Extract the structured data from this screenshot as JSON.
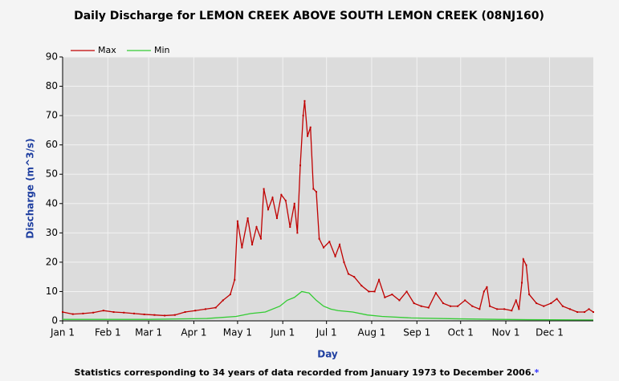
{
  "chart_data": {
    "type": "line",
    "title": "Daily Discharge for LEMON CREEK ABOVE SOUTH LEMON CREEK (08NJ160)",
    "x_label": "Day",
    "y_label": "Discharge (m^3/s)",
    "footnote": "Statistics corresponding to 34 years of data recorded from January 1973 to December 2006.",
    "footnote_mark": "*",
    "xlim": [
      1,
      365
    ],
    "xticks": [
      {
        "value": 1,
        "label": "Jan 1"
      },
      {
        "value": 32,
        "label": "Feb 1"
      },
      {
        "value": 60,
        "label": "Mar 1"
      },
      {
        "value": 91,
        "label": "Apr 1"
      },
      {
        "value": 121,
        "label": "May 1"
      },
      {
        "value": 152,
        "label": "Jun 1"
      },
      {
        "value": 182,
        "label": "Jul 1"
      },
      {
        "value": 213,
        "label": "Aug 1"
      },
      {
        "value": 244,
        "label": "Sep 1"
      },
      {
        "value": 274,
        "label": "Oct 1"
      },
      {
        "value": 305,
        "label": "Nov 1"
      },
      {
        "value": 335,
        "label": "Dec 1"
      }
    ],
    "ylim": [
      0,
      90
    ],
    "yticks": [
      0,
      10,
      20,
      30,
      40,
      50,
      60,
      70,
      80,
      90
    ],
    "grid": true,
    "legend": "top-left",
    "series": [
      {
        "name": "Max",
        "color": "#c00000",
        "x": [
          1,
          8,
          15,
          22,
          29,
          36,
          43,
          50,
          57,
          64,
          71,
          78,
          85,
          92,
          99,
          106,
          111,
          116,
          119,
          121,
          124,
          128,
          131,
          134,
          137,
          139,
          142,
          145,
          148,
          151,
          154,
          157,
          160,
          162,
          164,
          166,
          167,
          169,
          171,
          173,
          175,
          177,
          180,
          184,
          188,
          191,
          194,
          197,
          201,
          206,
          211,
          215,
          218,
          222,
          227,
          232,
          237,
          242,
          247,
          252,
          257,
          262,
          267,
          272,
          277,
          282,
          287,
          290,
          292,
          294,
          299,
          304,
          309,
          312,
          314,
          316,
          317,
          319,
          321,
          326,
          331,
          336,
          340,
          344,
          349,
          354,
          359,
          362,
          365
        ],
        "values": [
          3,
          2.3,
          2.5,
          2.8,
          3.5,
          3,
          2.8,
          2.5,
          2.2,
          2,
          1.8,
          2,
          3,
          3.5,
          4,
          4.5,
          7,
          9,
          14,
          34,
          25,
          35,
          26,
          32,
          28,
          45,
          38,
          42,
          35,
          43,
          41,
          32,
          40,
          30,
          53,
          70,
          75,
          63,
          66,
          45,
          44,
          28,
          25,
          27,
          22,
          26,
          20,
          16,
          15,
          12,
          10,
          10,
          14,
          8,
          9,
          7,
          10,
          6,
          5,
          4.5,
          9.5,
          6,
          5,
          5,
          7,
          5,
          4,
          10,
          11.5,
          5,
          4,
          4,
          3.5,
          7,
          4,
          13,
          21,
          19,
          9,
          6,
          5,
          6,
          7.5,
          5,
          4,
          3,
          3,
          4,
          3
        ]
      },
      {
        "name": "Min",
        "color": "#33cc33",
        "x": [
          1,
          60,
          100,
          120,
          130,
          140,
          150,
          155,
          160,
          165,
          170,
          175,
          180,
          185,
          190,
          200,
          210,
          220,
          240,
          270,
          300,
          320,
          365
        ],
        "values": [
          0.5,
          0.5,
          0.8,
          1.5,
          2.5,
          3,
          5,
          7,
          8,
          10,
          9.5,
          7,
          5,
          4,
          3.5,
          3,
          2,
          1.5,
          1,
          0.7,
          0.5,
          0.4,
          0.3
        ]
      }
    ]
  }
}
